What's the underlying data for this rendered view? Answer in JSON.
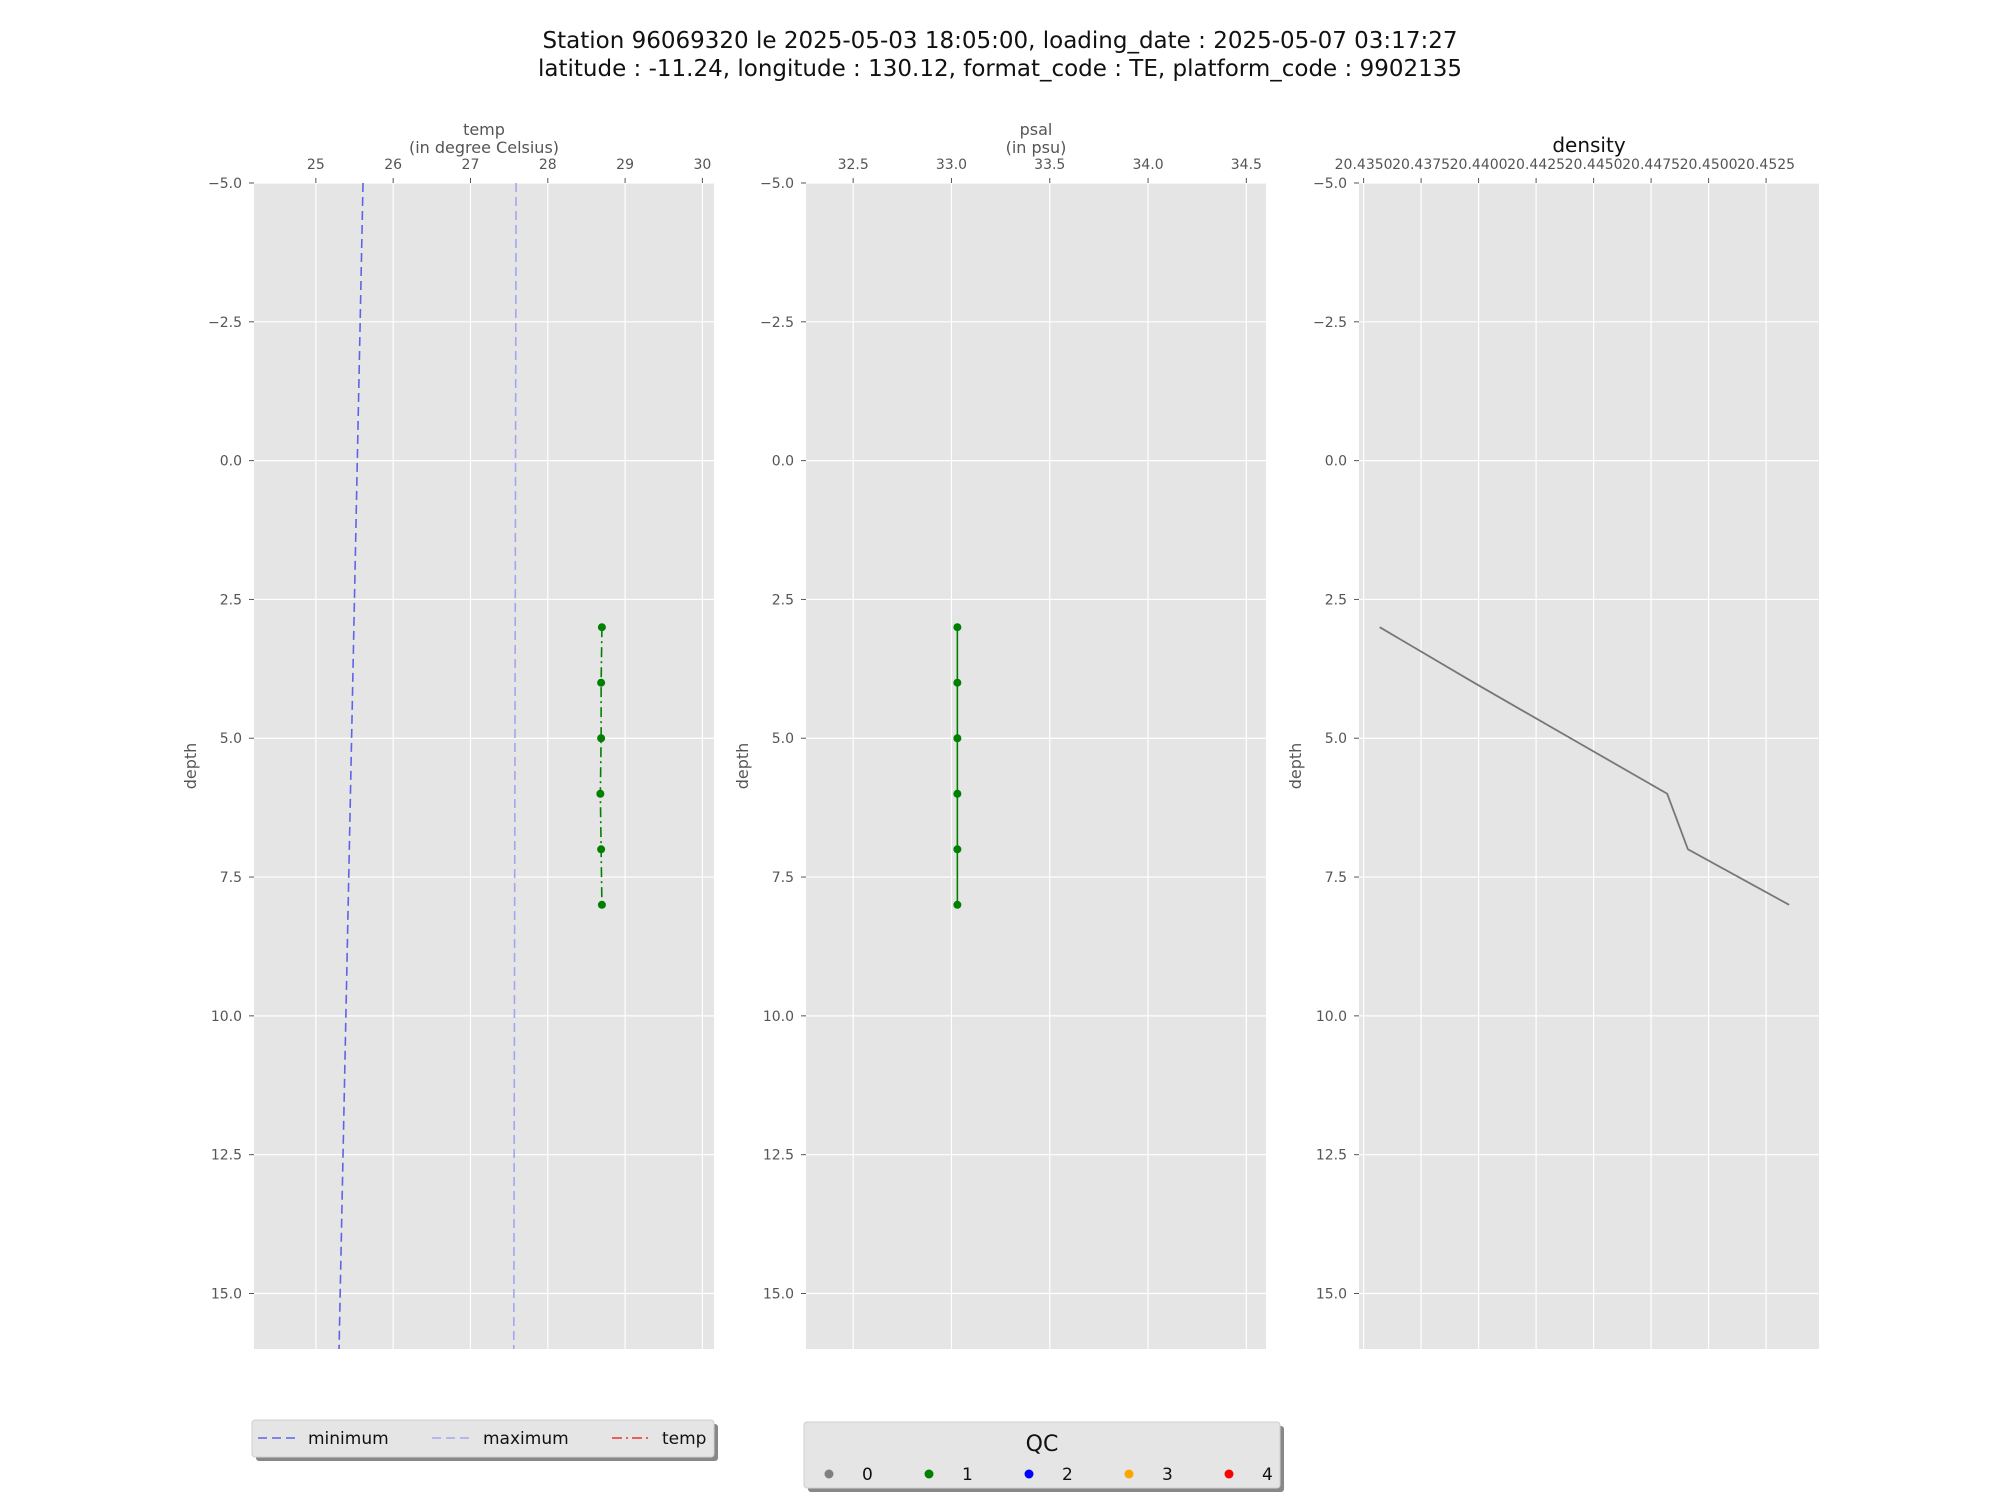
{
  "figure": {
    "title_line1": "Station 96069320 le 2025-05-03 18:05:00, loading_date : 2025-05-07 03:17:27",
    "title_line2": "latitude : -11.24, longitude : 130.12, format_code : TE, platform_code : 9902135"
  },
  "colors": {
    "panel_bg": "#e5e5e5",
    "grid": "#ffffff",
    "minimum": "#5e64e6",
    "maximum": "#a3a6ee",
    "temp_legend": "#e8372c",
    "qc1": "#008000",
    "density_line": "#777777"
  },
  "chart_data": [
    {
      "type": "line",
      "xlabel_line1": "temp",
      "xlabel_line2": "(in degree Celsius)",
      "ylabel": "depth",
      "xlim": [
        24.2,
        30.15
      ],
      "ylim": [
        16.0,
        -5.0
      ],
      "x_ticks": [
        25,
        26,
        27,
        28,
        29,
        30
      ],
      "x_tick_labels": [
        "25",
        "26",
        "27",
        "28",
        "29",
        "30"
      ],
      "y_ticks": [
        -5.0,
        -2.5,
        0.0,
        2.5,
        5.0,
        7.5,
        10.0,
        12.5,
        15.0
      ],
      "y_tick_labels": [
        "−5.0",
        "−2.5",
        "0.0",
        "2.5",
        "5.0",
        "7.5",
        "10.0",
        "12.5",
        "15.0"
      ],
      "grid": true,
      "series": [
        {
          "name": "minimum",
          "style": "dashed",
          "x": [
            25.61,
            25.3
          ],
          "y": [
            -5.0,
            16.0
          ]
        },
        {
          "name": "maximum",
          "style": "dashed",
          "x": [
            27.59,
            27.56
          ],
          "y": [
            -5.0,
            16.0
          ]
        },
        {
          "name": "temp",
          "style": "dashdot",
          "qc": 1,
          "x": [
            28.7,
            28.69,
            28.69,
            28.68,
            28.69,
            28.7
          ],
          "y": [
            3,
            4,
            5,
            6,
            7,
            8
          ]
        }
      ]
    },
    {
      "type": "line",
      "xlabel_line1": "psal",
      "xlabel_line2": "(in psu)",
      "ylabel": "depth",
      "xlim": [
        32.26,
        34.6
      ],
      "ylim": [
        16.0,
        -5.0
      ],
      "x_ticks": [
        32.5,
        33.0,
        33.5,
        34.0,
        34.5
      ],
      "x_tick_labels": [
        "32.5",
        "33.0",
        "33.5",
        "34.0",
        "34.5"
      ],
      "y_ticks": [
        -5.0,
        -2.5,
        0.0,
        2.5,
        5.0,
        7.5,
        10.0,
        12.5,
        15.0
      ],
      "y_tick_labels": [
        "−5.0",
        "−2.5",
        "0.0",
        "2.5",
        "5.0",
        "7.5",
        "10.0",
        "12.5",
        "15.0"
      ],
      "grid": true,
      "series": [
        {
          "style": "solid",
          "qc": 1,
          "x": [
            33.03,
            33.03,
            33.03,
            33.03,
            33.03,
            33.03
          ],
          "y": [
            3,
            4,
            5,
            6,
            7,
            8
          ]
        }
      ]
    },
    {
      "type": "line",
      "title": "density",
      "ylabel": "depth",
      "xlim": [
        20.4348,
        20.4548
      ],
      "ylim": [
        16.0,
        -5.0
      ],
      "x_ticks": [
        20.435,
        20.4375,
        20.44,
        20.4425,
        20.445,
        20.4475,
        20.45,
        20.4525
      ],
      "x_tick_labels": [
        "20.4350",
        "20.4375",
        "20.4400",
        "20.4425",
        "20.4450",
        "20.4475",
        "20.4500",
        "20.4525"
      ],
      "y_ticks": [
        -5.0,
        -2.5,
        0.0,
        2.5,
        5.0,
        7.5,
        10.0,
        12.5,
        15.0
      ],
      "y_tick_labels": [
        "−5.0",
        "−2.5",
        "0.0",
        "2.5",
        "5.0",
        "7.5",
        "10.0",
        "12.5",
        "15.0"
      ],
      "grid": true,
      "series": [
        {
          "style": "solid",
          "x": [
            20.4357,
            20.4398,
            20.444,
            20.4482,
            20.4491,
            20.4535
          ],
          "y": [
            3,
            4,
            5,
            6,
            7,
            8
          ]
        }
      ]
    }
  ],
  "legend_lines": {
    "items": [
      {
        "label": "minimum",
        "style": "dashed"
      },
      {
        "label": "maximum",
        "style": "dashed"
      },
      {
        "label": "temp",
        "style": "dashdot"
      }
    ]
  },
  "legend_qc": {
    "title": "QC",
    "items": [
      {
        "label": "0",
        "color": "#808080"
      },
      {
        "label": "1",
        "color": "#008000"
      },
      {
        "label": "2",
        "color": "#0000ff"
      },
      {
        "label": "3",
        "color": "#ffa500"
      },
      {
        "label": "4",
        "color": "#ff0000"
      }
    ]
  }
}
